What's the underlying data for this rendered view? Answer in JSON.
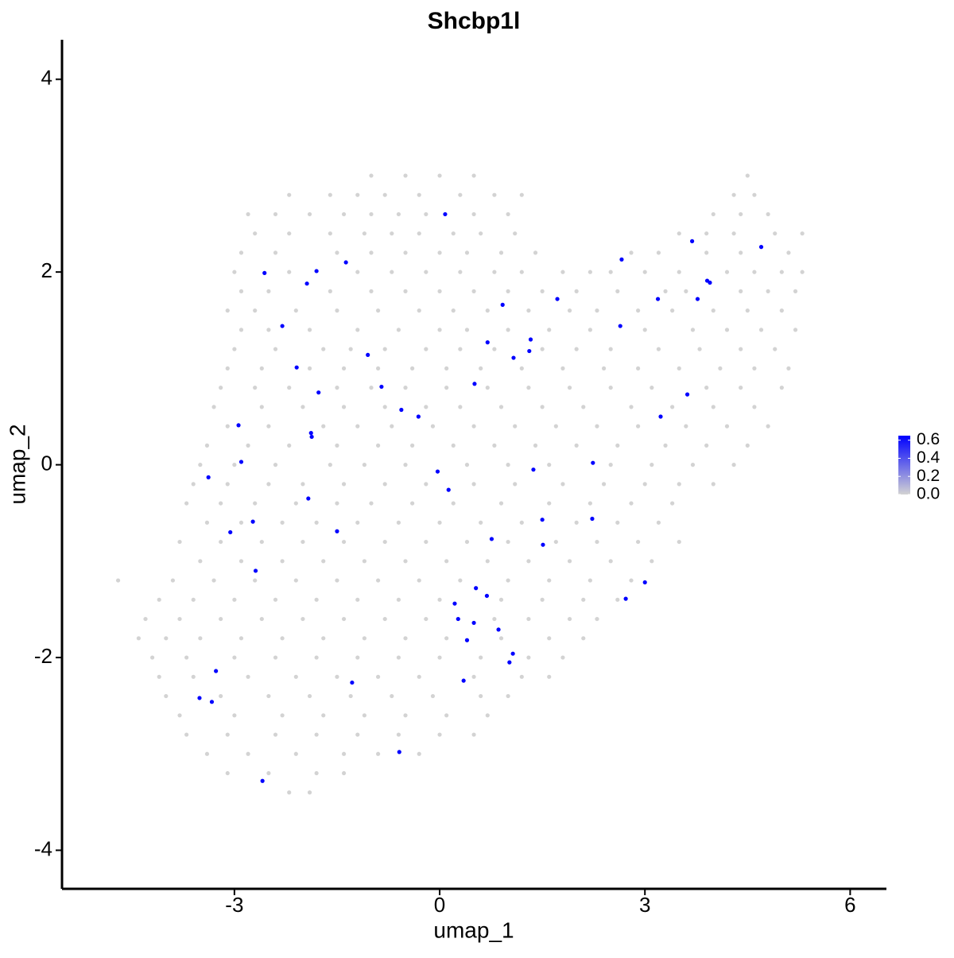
{
  "chart_data": {
    "type": "scatter",
    "title": "Shcbp1l",
    "x_label": "umap_1",
    "y_label": "umap_2",
    "xlim": [
      -5.52,
      6.53
    ],
    "ylim": [
      -4.4,
      4.41
    ],
    "xticks": [
      -3,
      0,
      3,
      6
    ],
    "yticks": [
      -4,
      -2,
      0,
      2,
      4
    ],
    "colorbar": {
      "lim": [
        0,
        0.65
      ],
      "low": "#d3d3d3",
      "high": "#0000ff",
      "ticks": [
        {
          "value": 0,
          "label": "0.0"
        },
        {
          "value": 0.2,
          "label": "0.2"
        },
        {
          "value": 0.4,
          "label": "0.4"
        },
        {
          "value": 0.6,
          "label": "0.6"
        }
      ]
    },
    "series": [
      {
        "color": "#d3d3d3",
        "x": [
          -1.0,
          -0.5,
          0.0,
          0.5,
          4.5,
          -2.2,
          -1.6,
          -1.2,
          -0.8,
          -0.3,
          0.3,
          0.8,
          1.2,
          4.3,
          4.6,
          -2.8,
          -2.4,
          -1.9,
          -1.4,
          -1.0,
          -0.6,
          -0.2,
          0.5,
          1.0,
          4.0,
          4.4,
          4.8,
          -2.7,
          -2.2,
          -1.6,
          -1.1,
          -0.7,
          -0.3,
          0.2,
          0.6,
          1.1,
          3.5,
          3.9,
          4.3,
          4.9,
          5.3,
          -2.9,
          -2.4,
          -1.5,
          -1.0,
          -0.5,
          0.0,
          0.4,
          0.9,
          1.4,
          2.8,
          3.2,
          3.9,
          4.4,
          5.1,
          -3.0,
          -2.2,
          -1.2,
          -0.7,
          -0.2,
          0.3,
          0.8,
          1.2,
          1.8,
          2.2,
          2.5,
          3.0,
          3.5,
          4.2,
          4.6,
          5.0,
          5.3,
          -2.9,
          -2.5,
          -1.6,
          -1.0,
          -0.5,
          0.0,
          0.5,
          1.0,
          1.5,
          2.0,
          2.6,
          3.3,
          3.6,
          4.4,
          4.8,
          5.2,
          -3.1,
          -2.7,
          -2.1,
          -1.5,
          -0.9,
          -0.3,
          0.2,
          0.7,
          1.3,
          1.9,
          2.3,
          2.9,
          3.4,
          4.0,
          4.5,
          5.0,
          -2.9,
          -2.5,
          -1.9,
          -1.2,
          -0.6,
          0.0,
          0.4,
          1.0,
          1.6,
          2.2,
          3.0,
          3.7,
          4.2,
          4.7,
          5.2,
          -3.0,
          -2.4,
          -1.7,
          -1.3,
          -0.8,
          -0.2,
          0.3,
          0.8,
          1.5,
          2.0,
          2.5,
          3.2,
          3.8,
          4.4,
          4.9,
          -3.1,
          -2.6,
          -1.9,
          -1.4,
          -0.9,
          -0.4,
          0.1,
          0.6,
          1.2,
          1.8,
          2.4,
          2.9,
          3.5,
          4.1,
          4.6,
          5.1,
          -3.2,
          -2.7,
          -2.2,
          -1.5,
          -1.0,
          -0.5,
          0.1,
          0.7,
          1.3,
          1.9,
          2.5,
          3.1,
          3.9,
          4.4,
          5.0,
          -3.3,
          -2.6,
          -2.0,
          -1.4,
          -0.8,
          -0.2,
          0.3,
          0.9,
          1.5,
          2.1,
          2.8,
          3.4,
          4.0,
          4.6,
          -3.1,
          -2.5,
          -1.7,
          -1.2,
          -0.7,
          -0.1,
          0.5,
          1.1,
          1.7,
          2.3,
          2.9,
          3.6,
          4.2,
          4.8,
          -3.4,
          -2.8,
          -2.2,
          -1.5,
          -0.9,
          -0.4,
          0.2,
          0.8,
          1.4,
          2.0,
          2.6,
          3.3,
          3.9,
          4.5,
          -3.5,
          -3.0,
          -2.4,
          -1.6,
          -1.1,
          -0.5,
          0.4,
          1.0,
          1.6,
          2.5,
          3.1,
          3.7,
          4.3,
          -3.6,
          -3.1,
          -2.5,
          -2.0,
          -1.4,
          -0.8,
          -0.2,
          0.5,
          1.1,
          1.8,
          2.4,
          3.0,
          3.5,
          4.0,
          -3.7,
          -3.2,
          -2.7,
          -2.1,
          -1.5,
          -1.0,
          -0.4,
          0.2,
          0.9,
          1.6,
          2.2,
          2.8,
          3.4,
          -3.4,
          -2.9,
          -2.3,
          -1.8,
          -1.2,
          -0.6,
          0.0,
          0.6,
          1.2,
          2.0,
          2.6,
          3.2,
          -3.8,
          -3.2,
          -2.6,
          -2.0,
          -1.4,
          -0.8,
          -0.2,
          0.4,
          1.0,
          1.7,
          2.3,
          2.9,
          3.5,
          -3.5,
          -2.9,
          -2.3,
          -1.7,
          -1.1,
          -0.5,
          0.1,
          0.7,
          1.3,
          1.9,
          2.5,
          3.1,
          -4.7,
          -3.9,
          -3.3,
          -2.7,
          -2.1,
          -1.5,
          -0.9,
          -0.3,
          0.3,
          1.0,
          1.6,
          2.2,
          2.8,
          -4.1,
          -3.6,
          -3.0,
          -2.4,
          -1.8,
          -1.2,
          -0.6,
          0.0,
          0.9,
          1.5,
          2.1,
          2.6,
          -4.3,
          -3.8,
          -3.2,
          -2.6,
          -2.0,
          -1.4,
          -0.8,
          -0.2,
          0.8,
          1.3,
          1.9,
          2.3,
          -4.4,
          -4.0,
          -3.5,
          -2.9,
          -2.3,
          -1.7,
          -1.1,
          -0.5,
          0.1,
          0.9,
          1.6,
          2.1,
          -4.2,
          -3.7,
          -3.0,
          -2.4,
          -1.8,
          -1.2,
          -0.6,
          0.0,
          0.6,
          1.3,
          1.8,
          -4.1,
          -3.6,
          -2.8,
          -2.1,
          -1.5,
          -0.9,
          -0.3,
          0.5,
          1.2,
          1.6,
          -4.0,
          -3.2,
          -2.5,
          -1.9,
          -1.3,
          -0.7,
          -0.1,
          0.6,
          1.0,
          -3.8,
          -3.0,
          -2.3,
          -1.7,
          -1.1,
          -0.5,
          0.1,
          0.7,
          -3.7,
          -3.1,
          -2.4,
          -1.8,
          -1.2,
          -0.6,
          0.0,
          0.5,
          -3.4,
          -2.8,
          -2.1,
          -1.4,
          -0.9,
          -0.3,
          -3.1,
          -2.5,
          -1.8,
          -1.4,
          -2.2,
          -1.9
        ],
        "y": [
          3.0,
          3.0,
          3.0,
          3.0,
          3.0,
          2.8,
          2.8,
          2.8,
          2.8,
          2.8,
          2.8,
          2.8,
          2.8,
          2.8,
          2.8,
          2.6,
          2.6,
          2.6,
          2.6,
          2.6,
          2.6,
          2.6,
          2.6,
          2.6,
          2.6,
          2.6,
          2.6,
          2.4,
          2.4,
          2.4,
          2.4,
          2.4,
          2.4,
          2.4,
          2.4,
          2.4,
          2.4,
          2.4,
          2.4,
          2.4,
          2.4,
          2.2,
          2.2,
          2.2,
          2.2,
          2.2,
          2.2,
          2.2,
          2.2,
          2.2,
          2.2,
          2.2,
          2.2,
          2.2,
          2.2,
          2.0,
          2.0,
          2.0,
          2.0,
          2.0,
          2.0,
          2.0,
          2.0,
          2.0,
          2.0,
          2.0,
          2.0,
          2.0,
          2.0,
          2.0,
          2.0,
          2.0,
          1.8,
          1.8,
          1.8,
          1.8,
          1.8,
          1.8,
          1.8,
          1.8,
          1.8,
          1.8,
          1.8,
          1.8,
          1.8,
          1.8,
          1.8,
          1.8,
          1.6,
          1.6,
          1.6,
          1.6,
          1.6,
          1.6,
          1.6,
          1.6,
          1.6,
          1.6,
          1.6,
          1.6,
          1.6,
          1.6,
          1.6,
          1.6,
          1.4,
          1.4,
          1.4,
          1.4,
          1.4,
          1.4,
          1.4,
          1.4,
          1.4,
          1.4,
          1.4,
          1.4,
          1.4,
          1.4,
          1.4,
          1.2,
          1.2,
          1.2,
          1.2,
          1.2,
          1.2,
          1.2,
          1.2,
          1.2,
          1.2,
          1.2,
          1.2,
          1.2,
          1.2,
          1.2,
          1.0,
          1.0,
          1.0,
          1.0,
          1.0,
          1.0,
          1.0,
          1.0,
          1.0,
          1.0,
          1.0,
          1.0,
          1.0,
          1.0,
          1.0,
          1.0,
          0.8,
          0.8,
          0.8,
          0.8,
          0.8,
          0.8,
          0.8,
          0.8,
          0.8,
          0.8,
          0.8,
          0.8,
          0.8,
          0.8,
          0.8,
          0.6,
          0.6,
          0.6,
          0.6,
          0.6,
          0.6,
          0.6,
          0.6,
          0.6,
          0.6,
          0.6,
          0.6,
          0.6,
          0.6,
          0.4,
          0.4,
          0.4,
          0.4,
          0.4,
          0.4,
          0.4,
          0.4,
          0.4,
          0.4,
          0.4,
          0.4,
          0.4,
          0.4,
          0.2,
          0.2,
          0.2,
          0.2,
          0.2,
          0.2,
          0.2,
          0.2,
          0.2,
          0.2,
          0.2,
          0.2,
          0.2,
          0.2,
          0.0,
          0.0,
          0.0,
          0.0,
          0.0,
          0.0,
          0.0,
          0.0,
          0.0,
          0.0,
          0.0,
          0.0,
          0.0,
          -0.2,
          -0.2,
          -0.2,
          -0.2,
          -0.2,
          -0.2,
          -0.2,
          -0.2,
          -0.2,
          -0.2,
          -0.2,
          -0.2,
          -0.2,
          -0.2,
          -0.4,
          -0.4,
          -0.4,
          -0.4,
          -0.4,
          -0.4,
          -0.4,
          -0.4,
          -0.4,
          -0.4,
          -0.4,
          -0.4,
          -0.4,
          -0.6,
          -0.6,
          -0.6,
          -0.6,
          -0.6,
          -0.6,
          -0.6,
          -0.6,
          -0.6,
          -0.6,
          -0.6,
          -0.6,
          -0.8,
          -0.8,
          -0.8,
          -0.8,
          -0.8,
          -0.8,
          -0.8,
          -0.8,
          -0.8,
          -0.8,
          -0.8,
          -0.8,
          -0.8,
          -1.0,
          -1.0,
          -1.0,
          -1.0,
          -1.0,
          -1.0,
          -1.0,
          -1.0,
          -1.0,
          -1.0,
          -1.0,
          -1.0,
          -1.2,
          -1.2,
          -1.2,
          -1.2,
          -1.2,
          -1.2,
          -1.2,
          -1.2,
          -1.2,
          -1.2,
          -1.2,
          -1.2,
          -1.2,
          -1.4,
          -1.4,
          -1.4,
          -1.4,
          -1.4,
          -1.4,
          -1.4,
          -1.4,
          -1.4,
          -1.4,
          -1.4,
          -1.4,
          -1.6,
          -1.6,
          -1.6,
          -1.6,
          -1.6,
          -1.6,
          -1.6,
          -1.6,
          -1.6,
          -1.6,
          -1.6,
          -1.6,
          -1.8,
          -1.8,
          -1.8,
          -1.8,
          -1.8,
          -1.8,
          -1.8,
          -1.8,
          -1.8,
          -1.8,
          -1.8,
          -1.8,
          -2.0,
          -2.0,
          -2.0,
          -2.0,
          -2.0,
          -2.0,
          -2.0,
          -2.0,
          -2.0,
          -2.0,
          -2.0,
          -2.2,
          -2.2,
          -2.2,
          -2.2,
          -2.2,
          -2.2,
          -2.2,
          -2.2,
          -2.2,
          -2.2,
          -2.4,
          -2.4,
          -2.4,
          -2.4,
          -2.4,
          -2.4,
          -2.4,
          -2.4,
          -2.4,
          -2.6,
          -2.6,
          -2.6,
          -2.6,
          -2.6,
          -2.6,
          -2.6,
          -2.6,
          -2.8,
          -2.8,
          -2.8,
          -2.8,
          -2.8,
          -2.8,
          -2.8,
          -2.8,
          -3.0,
          -3.0,
          -3.0,
          -3.0,
          -3.0,
          -3.0,
          -3.2,
          -3.2,
          -3.2,
          -3.2,
          -3.4,
          -3.4
        ]
      },
      {
        "color": "#0000ff",
        "x": [
          0.08,
          -2.56,
          -1.8,
          -1.94,
          -1.37,
          -2.3,
          -2.09,
          -1.77,
          -2.94,
          -1.88,
          -1.87,
          -2.9,
          -3.38,
          -1.92,
          -2.73,
          -3.06,
          -1.5,
          -2.69,
          -1.05,
          -0.85,
          -0.56,
          -0.31,
          0.92,
          1.72,
          0.7,
          1.33,
          1.31,
          1.08,
          0.51,
          -0.03,
          0.13,
          1.37,
          2.24,
          1.5,
          2.23,
          0.76,
          1.51,
          2.66,
          2.64,
          3.19,
          3.69,
          3.91,
          3.95,
          3.77,
          4.7,
          3.62,
          3.23,
          0.53,
          0.69,
          0.22,
          0.27,
          0.5,
          0.86,
          0.4,
          1.07,
          1.02,
          0.35,
          -1.28,
          3.0,
          2.72,
          -3.27,
          -3.51,
          -3.33,
          -0.59,
          -2.59
        ],
        "y": [
          2.6,
          1.99,
          2.01,
          1.88,
          2.1,
          1.44,
          1.01,
          0.75,
          0.41,
          0.33,
          0.29,
          0.03,
          -0.13,
          -0.35,
          -0.59,
          -0.7,
          -0.69,
          -1.1,
          1.14,
          0.81,
          0.57,
          0.5,
          1.66,
          1.72,
          1.27,
          1.3,
          1.18,
          1.11,
          0.84,
          -0.07,
          -0.26,
          -0.05,
          0.02,
          -0.57,
          -0.56,
          -0.77,
          -0.83,
          2.13,
          1.44,
          1.72,
          2.32,
          1.91,
          1.89,
          1.72,
          2.26,
          0.73,
          0.5,
          -1.28,
          -1.36,
          -1.44,
          -1.6,
          -1.64,
          -1.71,
          -1.82,
          -1.96,
          -2.05,
          -2.24,
          -2.26,
          -1.22,
          -1.39,
          -2.14,
          -2.42,
          -2.46,
          -2.98,
          -3.28
        ]
      }
    ]
  }
}
